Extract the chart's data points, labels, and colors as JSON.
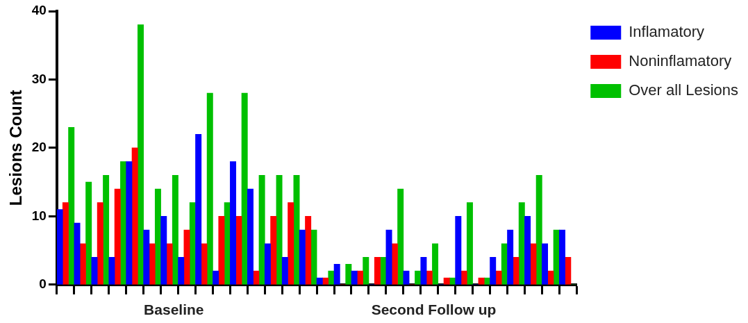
{
  "chart_data": {
    "type": "bar",
    "ylabel": "Lesions Count",
    "categories": [
      null,
      null,
      null,
      null,
      null,
      null,
      null,
      null,
      null,
      null,
      null,
      null,
      null,
      null,
      null,
      null,
      null,
      null,
      null,
      null,
      null,
      null,
      null,
      null,
      null,
      null,
      null,
      null,
      null,
      null
    ],
    "series": [
      {
        "name": "Inflamatory",
        "color": "#0000ff",
        "values": [
          11,
          9,
          4,
          4,
          18,
          8,
          10,
          4,
          22,
          2,
          18,
          14,
          6,
          4,
          8,
          1,
          3,
          2,
          0,
          8,
          2,
          4,
          0,
          10,
          0,
          4,
          8,
          10,
          6,
          8
        ]
      },
      {
        "name": "Noninflamatory",
        "color": "#ff0000",
        "values": [
          12,
          6,
          12,
          14,
          20,
          6,
          6,
          8,
          6,
          10,
          10,
          2,
          10,
          12,
          10,
          1,
          0,
          2,
          4,
          6,
          0,
          2,
          1,
          2,
          1,
          2,
          4,
          6,
          2,
          4
        ]
      },
      {
        "name": "Over all Lesions",
        "color": "#00c000",
        "values": [
          23,
          15,
          16,
          18,
          38,
          14,
          16,
          12,
          28,
          12,
          28,
          16,
          16,
          16,
          8,
          2,
          3,
          4,
          4,
          14,
          2,
          6,
          1,
          12,
          1,
          6,
          12,
          16,
          8,
          0
        ]
      }
    ],
    "ylim": [
      0,
      40
    ],
    "yticks": [
      0,
      10,
      20,
      30,
      40
    ],
    "grid": false,
    "legend": "right",
    "annotations": [
      "Baseline",
      "Second Follow up"
    ]
  }
}
